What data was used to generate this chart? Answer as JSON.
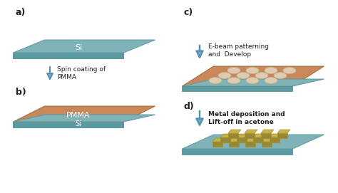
{
  "bg_color": "#ffffff",
  "si_color": "#7fb3b8",
  "si_edge_color": "#5a9aa0",
  "si_dark_color": "#5a9aa0",
  "pmma_color": "#c8885a",
  "pmma_edge_color": "#a06a3a",
  "metal_color": "#c8b44a",
  "metal_edge_color": "#a09030",
  "metal_dark": "#9a8830",
  "hole_color": "#e0cbb0",
  "hole_edge": "#c0b090",
  "arrow_color": "#7aaccc",
  "arrow_edge": "#5590b0",
  "label_color": "#222222",
  "step_labels": [
    "a)",
    "b)",
    "c)",
    "d)"
  ],
  "step_texts": [
    "Spin coating of\nPMMA",
    "E-beam patterning\nand  Develop",
    "Metal deposition and\nLift-off in acetone"
  ],
  "si_label": "Si",
  "pmma_label": "PMMA",
  "si_label2": "Si"
}
